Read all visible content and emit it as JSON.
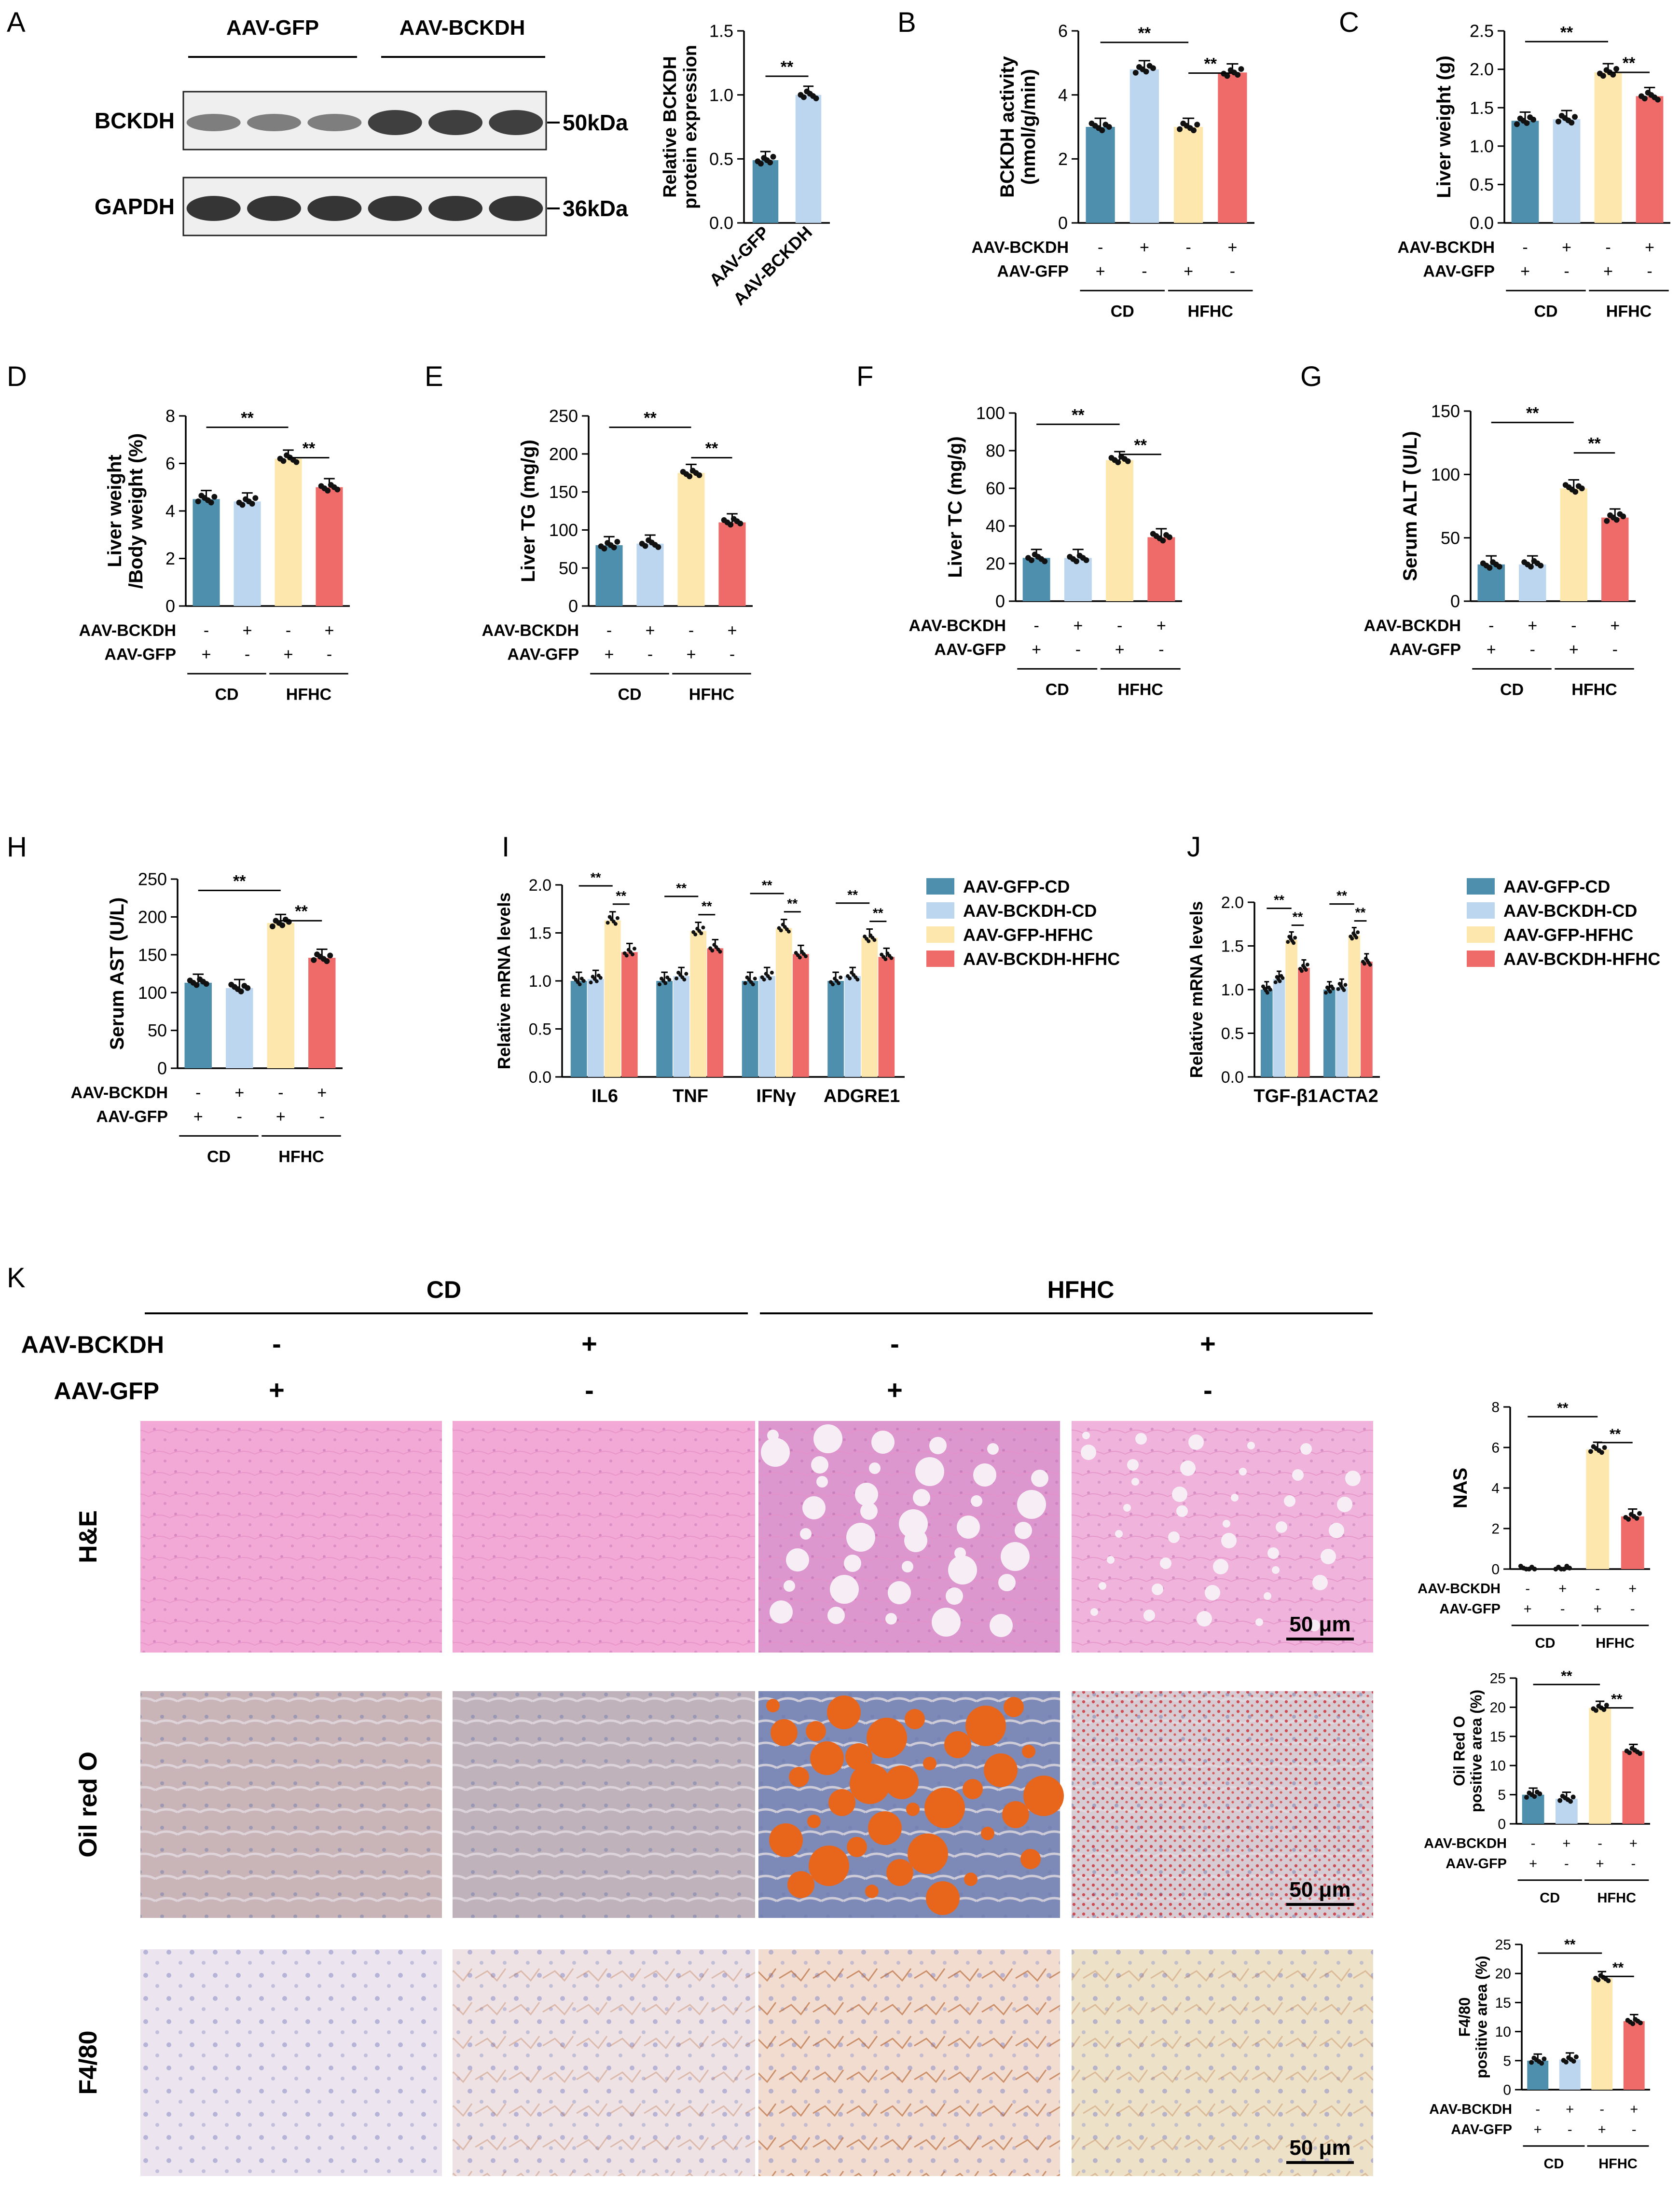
{
  "colors": {
    "gfp_cd": "#4f8fae",
    "bckdh_cd": "#bcd6ef",
    "gfp_hfhc": "#fde7ac",
    "bckdh_hfhc": "#ef6b69",
    "he_bg": "#f3a9d6",
    "he_fat": "#dd97cf",
    "oro_bg": "#c9b4b8",
    "oro_drop": "#e8651c",
    "f480_bg": "#ece4ee"
  },
  "groups": {
    "cd": "CD",
    "hfhc": "HFHC",
    "bckdh_row": "AAV-BCKDH",
    "gfp_row": "AAV-GFP",
    "bckdh_signs": [
      "-",
      "+",
      "-",
      "+"
    ],
    "gfp_signs": [
      "+",
      "-",
      "+",
      "-"
    ],
    "sig": "**"
  },
  "panel_a": {
    "letter": "A",
    "blot": {
      "lane_groups": [
        "AAV-GFP",
        "AAV-BCKDH"
      ],
      "bands": [
        {
          "name": "BCKDH",
          "size": "50kDa"
        },
        {
          "name": "GAPDH",
          "size": "36kDa"
        }
      ]
    },
    "chart_data": {
      "type": "bar",
      "categories": [
        "AAV-GFP",
        "AAV-BCKDH"
      ],
      "values": [
        0.49,
        1.0
      ],
      "ylabel": "Relative BCKDH protein expression",
      "ylabel_lines": [
        "Relative BCKDH",
        "protein expression"
      ],
      "ylim": [
        0,
        1.5
      ],
      "yticks": [
        "0.0",
        "0.5",
        "1.0",
        "1.5"
      ]
    }
  },
  "charts": [
    {
      "letter": "B",
      "chart_data": {
        "type": "bar",
        "values": [
          3.0,
          4.8,
          3.0,
          4.7
        ],
        "ylabel_lines": [
          "BCKDH activity",
          "(nmol/g/min)"
        ],
        "ylim": [
          0,
          6
        ],
        "yticks": [
          "0",
          "2",
          "4",
          "6"
        ]
      }
    },
    {
      "letter": "C",
      "chart_data": {
        "type": "bar",
        "values": [
          1.33,
          1.35,
          1.96,
          1.65
        ],
        "ylabel_lines": [
          "Liver weight (g)"
        ],
        "ylim": [
          0,
          2.5
        ],
        "yticks": [
          "0.0",
          "0.5",
          "1.0",
          "1.5",
          "2.0",
          "2.5"
        ]
      }
    },
    {
      "letter": "D",
      "chart_data": {
        "type": "bar",
        "values": [
          4.5,
          4.4,
          6.2,
          5.0
        ],
        "ylabel_lines": [
          "Liver weight",
          "/Body weight (%)"
        ],
        "ylim": [
          0,
          8
        ],
        "yticks": [
          "0",
          "2",
          "4",
          "6",
          "8"
        ]
      }
    },
    {
      "letter": "E",
      "chart_data": {
        "type": "bar",
        "values": [
          80,
          82,
          175,
          110
        ],
        "ylabel_lines": [
          "Liver TG (mg/g)"
        ],
        "ylim": [
          0,
          250
        ],
        "yticks": [
          "0",
          "50",
          "100",
          "150",
          "200",
          "250"
        ]
      }
    },
    {
      "letter": "F",
      "chart_data": {
        "type": "bar",
        "values": [
          23,
          23,
          75,
          34
        ],
        "ylabel_lines": [
          "Liver TC (mg/g)"
        ],
        "ylim": [
          0,
          100
        ],
        "yticks": [
          "0",
          "20",
          "40",
          "60",
          "80",
          "100"
        ]
      }
    },
    {
      "letter": "G",
      "chart_data": {
        "type": "bar",
        "values": [
          29,
          29,
          89,
          66
        ],
        "ylabel_lines": [
          "Serum ALT (U/L)"
        ],
        "ylim": [
          0,
          150
        ],
        "yticks": [
          "0",
          "50",
          "100",
          "150"
        ]
      }
    },
    {
      "letter": "H",
      "chart_data": {
        "type": "bar",
        "values": [
          113,
          106,
          192,
          146
        ],
        "ylabel_lines": [
          "Serum AST (U/L)"
        ],
        "ylim": [
          0,
          250
        ],
        "yticks": [
          "0",
          "50",
          "100",
          "150",
          "200",
          "250"
        ]
      }
    },
    {
      "letter": "",
      "chart_data": {
        "type": "bar",
        "values": [
          0,
          0,
          5.9,
          2.6
        ],
        "ylabel_lines": [
          "NAS"
        ],
        "ylim": [
          0,
          8
        ],
        "yticks": [
          "0",
          "2",
          "4",
          "6",
          "8"
        ]
      }
    },
    {
      "letter": "",
      "chart_data": {
        "type": "bar",
        "values": [
          5,
          4.3,
          19.9,
          12.5
        ],
        "ylabel_lines": [
          "Oil Red O",
          "positive area (%)"
        ],
        "ylim": [
          0,
          25
        ],
        "yticks": [
          "0",
          "5",
          "10",
          "15",
          "20",
          "25"
        ]
      }
    },
    {
      "letter": "",
      "chart_data": {
        "type": "bar",
        "values": [
          5,
          5.2,
          19.2,
          11.8
        ],
        "ylabel_lines": [
          "F4/80",
          "positive area (%)"
        ],
        "ylim": [
          0,
          25
        ],
        "yticks": [
          "0",
          "5",
          "10",
          "15",
          "20",
          "25"
        ]
      }
    }
  ],
  "grouped": [
    {
      "letter": "I",
      "chart_data": {
        "type": "bar",
        "categories": [
          "IL6",
          "TNF",
          "IFNγ",
          "ADGRE1"
        ],
        "series": [
          {
            "name": "AAV-GFP-CD",
            "values": [
              1.0,
              1.0,
              1.0,
              1.0
            ]
          },
          {
            "name": "AAV-BCKDH-CD",
            "values": [
              1.02,
              1.05,
              1.05,
              1.05
            ]
          },
          {
            "name": "AAV-GFP-HFHC",
            "values": [
              1.63,
              1.52,
              1.55,
              1.45
            ]
          },
          {
            "name": "AAV-BCKDH-HFHC",
            "values": [
              1.3,
              1.34,
              1.28,
              1.25
            ]
          }
        ],
        "ylabel": "Relative mRNA levels",
        "ylim": [
          0,
          2.0
        ],
        "yticks": [
          "0.0",
          "0.5",
          "1.0",
          "1.5",
          "2.0"
        ]
      }
    },
    {
      "letter": "J",
      "chart_data": {
        "type": "bar",
        "categories": [
          "TGF-β1",
          "ACTA2"
        ],
        "series": [
          {
            "name": "AAV-GFP-CD",
            "values": [
              1.0,
              1.0
            ]
          },
          {
            "name": "AAV-BCKDH-CD",
            "values": [
              1.12,
              1.03
            ]
          },
          {
            "name": "AAV-GFP-HFHC",
            "values": [
              1.57,
              1.62
            ]
          },
          {
            "name": "AAV-BCKDH-HFHC",
            "values": [
              1.25,
              1.32
            ]
          }
        ],
        "ylabel": "Relative mRNA levels",
        "ylim": [
          0,
          2.0
        ],
        "yticks": [
          "0.0",
          "0.5",
          "1.0",
          "1.5",
          "2.0"
        ]
      }
    }
  ],
  "panel_k": {
    "letter": "K",
    "rows": [
      "H&E",
      "Oil red O",
      "F4/80"
    ],
    "scale_bar": "50 μm"
  }
}
